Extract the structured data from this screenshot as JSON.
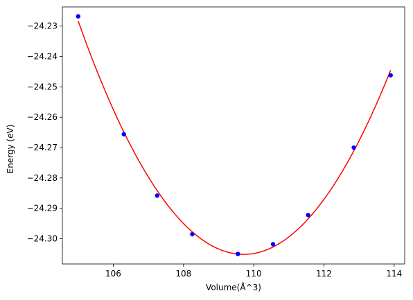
{
  "chart_data": {
    "type": "scatter",
    "title": "",
    "xlabel": "Volume(Å^3)",
    "ylabel": "Energy (eV)",
    "xlim": [
      104.55,
      114.3
    ],
    "ylim": [
      -24.3083,
      -24.2237
    ],
    "xticks": [
      106,
      108,
      110,
      112,
      114
    ],
    "xtick_labels": [
      "106",
      "108",
      "110",
      "112",
      "114"
    ],
    "yticks": [
      -24.23,
      -24.24,
      -24.25,
      -24.26,
      -24.27,
      -24.28,
      -24.29,
      -24.3
    ],
    "ytick_labels": [
      "−24.23",
      "−24.24",
      "−24.25",
      "−24.26",
      "−24.27",
      "−24.28",
      "−24.29",
      "−24.30"
    ],
    "grid": false,
    "series": [
      {
        "kind": "scatter",
        "color": "#0000ff",
        "x": [
          105.0,
          106.3,
          107.25,
          108.25,
          109.55,
          110.55,
          111.55,
          112.85,
          113.9
        ],
        "y": [
          -24.2268,
          -24.2656,
          -24.2858,
          -24.2985,
          -24.305,
          -24.3018,
          -24.2922,
          -24.27,
          -24.2462
        ]
      },
      {
        "kind": "fit-line",
        "color": "#ff0000",
        "fit": "quadratic"
      }
    ]
  }
}
